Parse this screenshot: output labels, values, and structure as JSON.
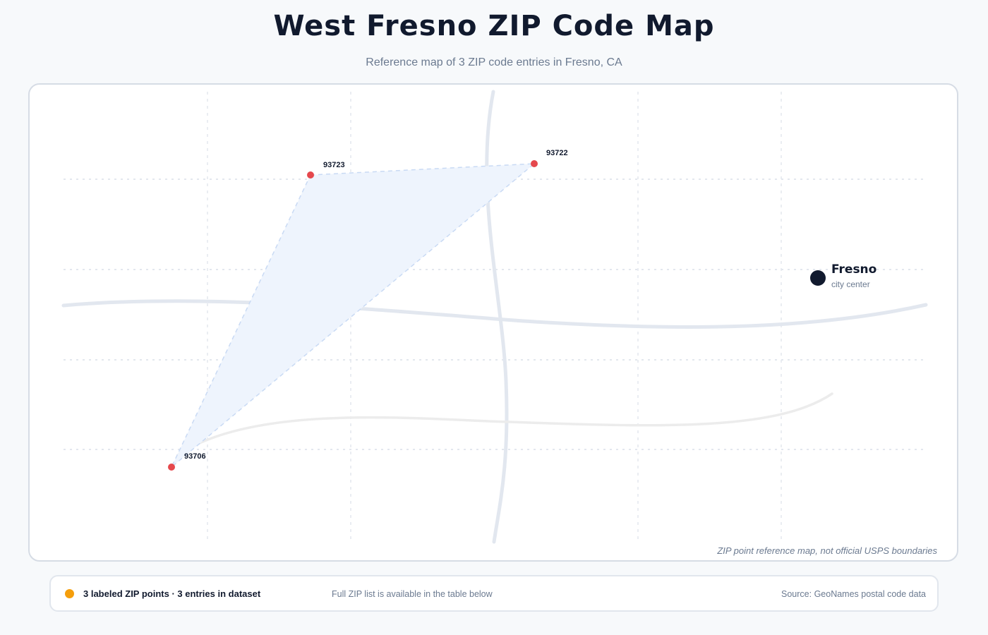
{
  "title": "West Fresno ZIP Code Map",
  "subtitle": "Reference map of 3 ZIP code entries in Fresno, CA",
  "map": {
    "zip_points": [
      {
        "zip": "93723"
      },
      {
        "zip": "93722"
      },
      {
        "zip": "93706"
      }
    ],
    "city": {
      "name": "Fresno",
      "caption": "city center"
    },
    "disclaimer": "ZIP point reference map, not official USPS boundaries",
    "colors": {
      "zip_point": "#e5484d",
      "coverage_fill": "#eef4fd",
      "coverage_stroke": "#c9daf4",
      "road": "#e2e7ef",
      "grid": "#e3e7ee",
      "city_marker": "#111a2e"
    }
  },
  "footer": {
    "legend_label": "3 labeled ZIP points · 3 entries in dataset",
    "legend_color": "#f59e0b",
    "note": "Full ZIP list is available in the table below",
    "source": "Source: GeoNames postal code data"
  }
}
